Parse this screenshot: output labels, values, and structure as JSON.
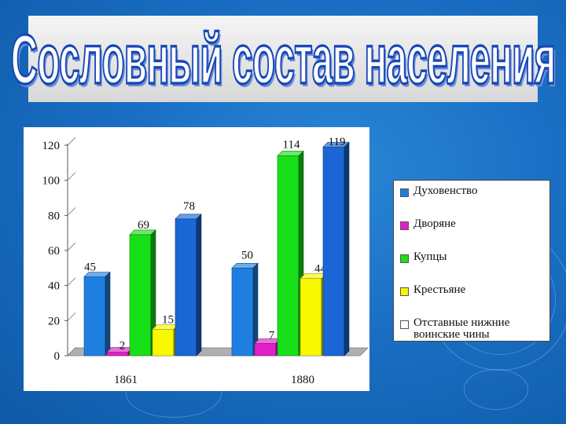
{
  "title": "Сословный состав населения",
  "colors": {
    "clergy": "#1f7fe0",
    "nobles": "#e020c8",
    "merchants": "#18e018",
    "peasants": "#f8f800",
    "retired": "#ffffff"
  },
  "chart_data": {
    "type": "bar",
    "categories": [
      "1861",
      "1880"
    ],
    "series": [
      {
        "name": "Духовенство",
        "values": [
          45,
          50
        ],
        "color": "#1f7fe0"
      },
      {
        "name": "Дворяне",
        "values": [
          2,
          7
        ],
        "color": "#e020c8"
      },
      {
        "name": "Купцы",
        "values": [
          69,
          114
        ],
        "color": "#18e018"
      },
      {
        "name": "Крестьяне",
        "values": [
          15,
          44
        ],
        "color": "#f8f800"
      },
      {
        "name": "Отставные нижние воинские чины",
        "values": [
          78,
          119
        ],
        "color": "#1a66d4"
      }
    ],
    "ylim": [
      0,
      120
    ],
    "yticks": [
      0,
      20,
      40,
      60,
      80,
      100,
      120
    ],
    "grid": false,
    "legend_position": "right"
  }
}
